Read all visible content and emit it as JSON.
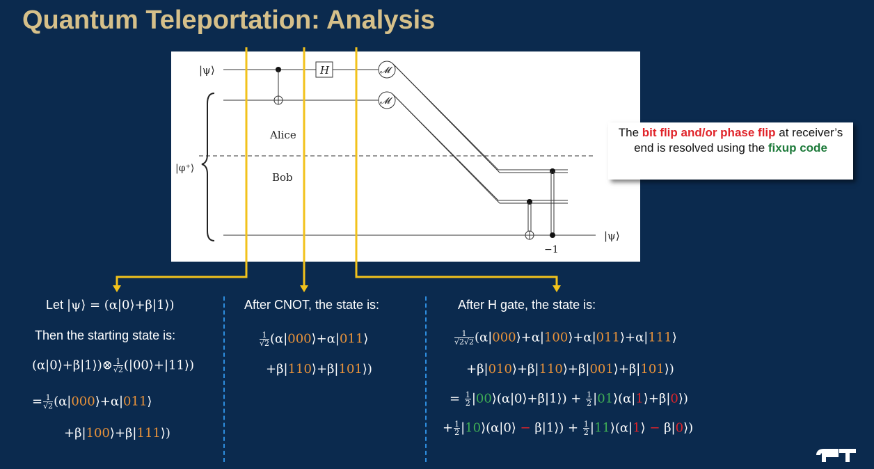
{
  "title": "Quantum Teleportation: Analysis",
  "circuit": {
    "input_label": "|ψ⟩",
    "bell_label": "|φ⁺⟩",
    "hadamard_label": "H",
    "measure_label": "𝓜",
    "alice_label": "Alice",
    "bob_label": "Bob",
    "output_label": "|ψ⟩",
    "phase_label": "−1"
  },
  "callout": {
    "text_before": "The ",
    "highlight_red": "bit flip and/or phase flip",
    "text_middle": " at receiver’s end is resolved using the ",
    "highlight_green": "fixup code"
  },
  "col1": {
    "let_prefix": "Let ",
    "let_math": "|ψ⟩ = (α|0⟩+β|1⟩)",
    "starting": "Then the starting state is:",
    "line1": "(α|0⟩+β|1⟩)⊗",
    "line1_frac_num": "1",
    "line1_frac_den": "√2",
    "line1_tail": "(|00⟩+|11⟩)",
    "line2_prefix": "=",
    "line2_frac_num": "1",
    "line2_frac_den": "√2",
    "line3": "+β|100⟩+β|111⟩)"
  },
  "col2": {
    "heading": "After CNOT, the state is:",
    "frac_num": "1",
    "frac_den": "√2"
  },
  "col3": {
    "heading": "After H gate, the state is:",
    "frac_num": "1",
    "frac_den": "√2√2"
  },
  "colors": {
    "background": "#0b2a4e",
    "title": "#d6c08a",
    "arrow": "#f2c21b",
    "divider": "#2e8ee0",
    "orange": "#e8923a",
    "green": "#3fae55",
    "red": "#e0242a"
  }
}
